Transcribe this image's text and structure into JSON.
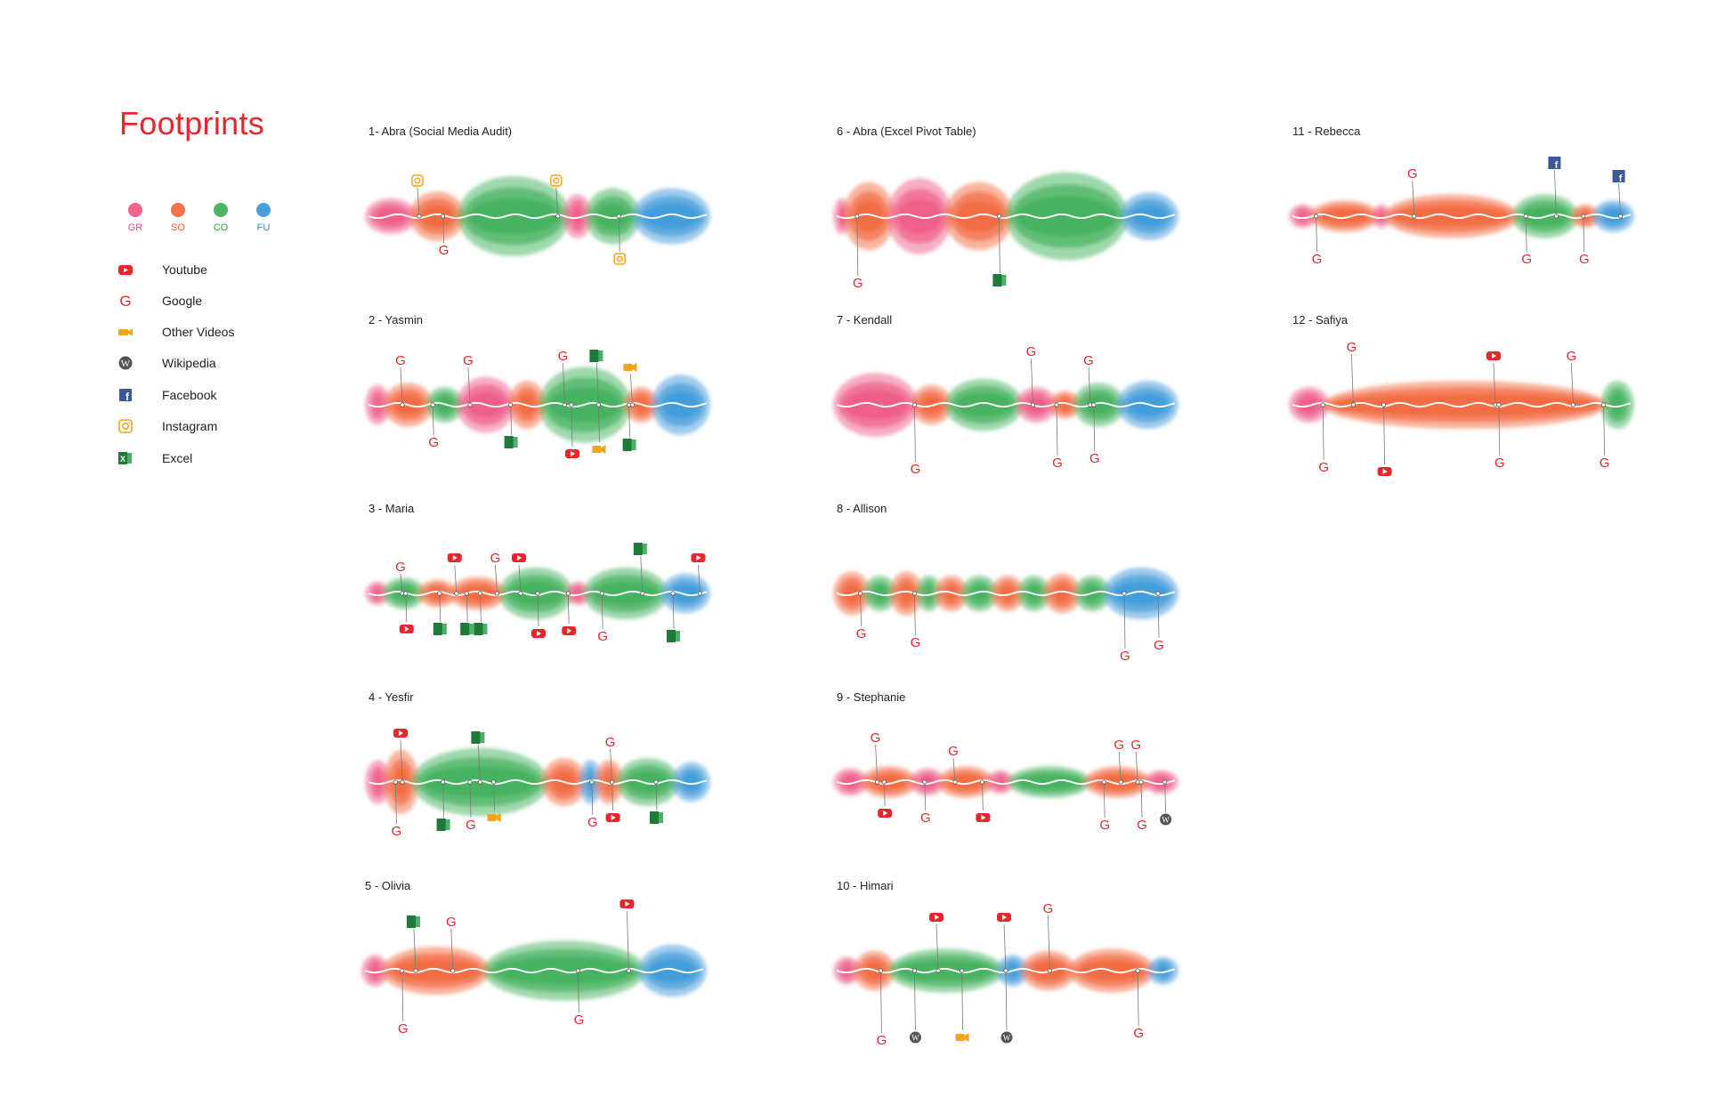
{
  "page": {
    "title": "Footprints"
  },
  "stages": [
    {
      "code": "GR",
      "color": "#ec4a7a"
    },
    {
      "code": "SO",
      "color": "#f15a2b"
    },
    {
      "code": "CO",
      "color": "#2ea84a"
    },
    {
      "code": "FU",
      "color": "#2c8fd6"
    }
  ],
  "legend": [
    {
      "label": "Youtube",
      "icon": "youtube-icon"
    },
    {
      "label": "Google",
      "icon": "google-icon"
    },
    {
      "label": "Other Videos",
      "icon": "video-camera-icon"
    },
    {
      "label": "Wikipedia",
      "icon": "wikipedia-icon"
    },
    {
      "label": "Facebook",
      "icon": "facebook-icon"
    },
    {
      "label": "Instagram",
      "icon": "instagram-icon"
    },
    {
      "label": "Excel",
      "icon": "excel-icon"
    }
  ],
  "colors": {
    "GR": "#ec4a7a",
    "SO": "#f15a2b",
    "CO": "#2ea84a",
    "FU": "#2c8fd6",
    "accent": "#e8262b",
    "youtube": "#e8262b",
    "google": "#e8262b",
    "video": "#f5a31a",
    "facebook": "#3b5998",
    "instagram": "#f5a31a",
    "excel": "#1f7a3a",
    "wikipedia": "#555555"
  },
  "chart_data": [
    {
      "title": "1- Abra (Social Media Audit)",
      "blobs": [
        {
          "s": "GR",
          "w": 0.14,
          "h": 0.45
        },
        {
          "s": "SO",
          "w": 0.15,
          "h": 0.62
        },
        {
          "s": "CO",
          "w": 0.33,
          "h": 1.0
        },
        {
          "s": "GR",
          "w": 0.07,
          "h": 0.55
        },
        {
          "s": "CO",
          "w": 0.15,
          "h": 0.7
        },
        {
          "s": "FU",
          "w": 0.22,
          "h": 0.7
        }
      ],
      "annotations": [
        {
          "icon": "instagram-icon",
          "pos": 0.15,
          "side": "up",
          "len": 40
        },
        {
          "icon": "google-icon",
          "pos": 0.22,
          "side": "down",
          "len": 38
        },
        {
          "icon": "instagram-icon",
          "pos": 0.56,
          "side": "up",
          "len": 40
        },
        {
          "icon": "instagram-icon",
          "pos": 0.74,
          "side": "down",
          "len": 48
        }
      ]
    },
    {
      "title": "2 - Yasmin",
      "blobs": [
        {
          "s": "GR",
          "w": 0.06,
          "h": 0.5
        },
        {
          "s": "SO",
          "w": 0.14,
          "h": 0.55
        },
        {
          "s": "CO",
          "w": 0.1,
          "h": 0.45
        },
        {
          "s": "GR",
          "w": 0.17,
          "h": 0.7
        },
        {
          "s": "SO",
          "w": 0.1,
          "h": 0.6
        },
        {
          "s": "CO",
          "w": 0.28,
          "h": 0.95
        },
        {
          "s": "SO",
          "w": 0.09,
          "h": 0.45
        },
        {
          "s": "FU",
          "w": 0.17,
          "h": 0.75
        }
      ],
      "annotations": [
        {
          "icon": "google-icon",
          "pos": 0.1,
          "side": "up",
          "len": 50
        },
        {
          "icon": "google-icon",
          "pos": 0.19,
          "side": "down",
          "len": 42
        },
        {
          "icon": "google-icon",
          "pos": 0.3,
          "side": "up",
          "len": 50
        },
        {
          "icon": "excel-icon",
          "pos": 0.42,
          "side": "down",
          "len": 42
        },
        {
          "icon": "google-icon",
          "pos": 0.58,
          "side": "up",
          "len": 55
        },
        {
          "icon": "excel-icon",
          "pos": 0.68,
          "side": "up",
          "len": 55
        },
        {
          "icon": "video-camera-icon",
          "pos": 0.78,
          "side": "up",
          "len": 42
        },
        {
          "icon": "youtube-icon",
          "pos": 0.6,
          "side": "down",
          "len": 55
        },
        {
          "icon": "video-camera-icon",
          "pos": 0.68,
          "side": "down",
          "len": 50
        },
        {
          "icon": "excel-icon",
          "pos": 0.77,
          "side": "down",
          "len": 45
        }
      ]
    },
    {
      "title": "3 - Maria",
      "blobs": [
        {
          "s": "GR",
          "w": 0.05,
          "h": 0.3
        },
        {
          "s": "CO",
          "w": 0.1,
          "h": 0.4
        },
        {
          "s": "SO",
          "w": 0.09,
          "h": 0.35
        },
        {
          "s": "SO",
          "w": 0.14,
          "h": 0.42
        },
        {
          "s": "CO",
          "w": 0.19,
          "h": 0.65
        },
        {
          "s": "GR",
          "w": 0.05,
          "h": 0.3
        },
        {
          "s": "CO",
          "w": 0.22,
          "h": 0.65
        },
        {
          "s": "FU",
          "w": 0.12,
          "h": 0.5
        }
      ],
      "annotations": [
        {
          "icon": "google-icon",
          "pos": 0.1,
          "side": "up",
          "len": 30
        },
        {
          "icon": "youtube-icon",
          "pos": 0.26,
          "side": "up",
          "len": 40
        },
        {
          "icon": "google-icon",
          "pos": 0.38,
          "side": "up",
          "len": 40
        },
        {
          "icon": "youtube-icon",
          "pos": 0.45,
          "side": "up",
          "len": 40
        },
        {
          "icon": "excel-icon",
          "pos": 0.81,
          "side": "up",
          "len": 50
        },
        {
          "icon": "youtube-icon",
          "pos": 0.98,
          "side": "up",
          "len": 40
        },
        {
          "icon": "youtube-icon",
          "pos": 0.11,
          "side": "down",
          "len": 40
        },
        {
          "icon": "excel-icon",
          "pos": 0.21,
          "side": "down",
          "len": 40
        },
        {
          "icon": "excel-icon",
          "pos": 0.29,
          "side": "down",
          "len": 40
        },
        {
          "icon": "excel-icon",
          "pos": 0.33,
          "side": "down",
          "len": 40
        },
        {
          "icon": "youtube-icon",
          "pos": 0.5,
          "side": "down",
          "len": 45
        },
        {
          "icon": "youtube-icon",
          "pos": 0.59,
          "side": "down",
          "len": 42
        },
        {
          "icon": "google-icon",
          "pos": 0.69,
          "side": "down",
          "len": 48
        },
        {
          "icon": "excel-icon",
          "pos": 0.9,
          "side": "down",
          "len": 48
        }
      ]
    },
    {
      "title": "4 - Yesfir",
      "blobs": [
        {
          "s": "GR",
          "w": 0.06,
          "h": 0.55
        },
        {
          "s": "SO",
          "w": 0.09,
          "h": 0.8
        },
        {
          "s": "CO",
          "w": 0.42,
          "h": 0.85
        },
        {
          "s": "SO",
          "w": 0.12,
          "h": 0.6
        },
        {
          "s": "FU",
          "w": 0.05,
          "h": 0.55
        },
        {
          "s": "SO",
          "w": 0.07,
          "h": 0.55
        },
        {
          "s": "CO",
          "w": 0.18,
          "h": 0.6
        },
        {
          "s": "FU",
          "w": 0.1,
          "h": 0.5
        }
      ],
      "annotations": [
        {
          "icon": "youtube-icon",
          "pos": 0.1,
          "side": "up",
          "len": 55
        },
        {
          "icon": "excel-icon",
          "pos": 0.33,
          "side": "up",
          "len": 50
        },
        {
          "icon": "google-icon",
          "pos": 0.72,
          "side": "up",
          "len": 45
        },
        {
          "icon": "google-icon",
          "pos": 0.08,
          "side": "down",
          "len": 55
        },
        {
          "icon": "excel-icon",
          "pos": 0.22,
          "side": "down",
          "len": 48
        },
        {
          "icon": "google-icon",
          "pos": 0.3,
          "side": "down",
          "len": 48
        },
        {
          "icon": "video-camera-icon",
          "pos": 0.37,
          "side": "down",
          "len": 40
        },
        {
          "icon": "google-icon",
          "pos": 0.66,
          "side": "down",
          "len": 45
        },
        {
          "icon": "youtube-icon",
          "pos": 0.72,
          "side": "down",
          "len": 40
        },
        {
          "icon": "excel-icon",
          "pos": 0.85,
          "side": "down",
          "len": 40
        }
      ]
    },
    {
      "title": "5 - Olivia",
      "blobs": [
        {
          "s": "GR",
          "w": 0.06,
          "h": 0.4
        },
        {
          "s": "SO",
          "w": 0.3,
          "h": 0.6
        },
        {
          "s": "CO",
          "w": 0.46,
          "h": 0.75
        },
        {
          "s": "FU",
          "w": 0.18,
          "h": 0.65
        }
      ],
      "annotations": [
        {
          "icon": "excel-icon",
          "pos": 0.15,
          "side": "up",
          "len": 55
        },
        {
          "icon": "google-icon",
          "pos": 0.26,
          "side": "up",
          "len": 55
        },
        {
          "icon": "youtube-icon",
          "pos": 0.78,
          "side": "up",
          "len": 75
        },
        {
          "icon": "google-icon",
          "pos": 0.11,
          "side": "down",
          "len": 65
        },
        {
          "icon": "google-icon",
          "pos": 0.63,
          "side": "down",
          "len": 55
        }
      ]
    },
    {
      "title": "6 - Abra (Excel Pivot Table)",
      "blobs": [
        {
          "s": "GR",
          "w": 0.03,
          "h": 0.45
        },
        {
          "s": "SO",
          "w": 0.13,
          "h": 0.85
        },
        {
          "s": "GR",
          "w": 0.17,
          "h": 0.95
        },
        {
          "s": "SO",
          "w": 0.18,
          "h": 0.85
        },
        {
          "s": "CO",
          "w": 0.34,
          "h": 1.1
        },
        {
          "s": "FU",
          "w": 0.15,
          "h": 0.6
        }
      ],
      "annotations": [
        {
          "icon": "google-icon",
          "pos": 0.06,
          "side": "down",
          "len": 75
        },
        {
          "icon": "excel-icon",
          "pos": 0.48,
          "side": "down",
          "len": 72
        }
      ]
    },
    {
      "title": "7 - Kendall",
      "blobs": [
        {
          "s": "GR",
          "w": 0.23,
          "h": 0.8
        },
        {
          "s": "SO",
          "w": 0.1,
          "h": 0.5
        },
        {
          "s": "CO",
          "w": 0.21,
          "h": 0.65
        },
        {
          "s": "GR",
          "w": 0.1,
          "h": 0.45
        },
        {
          "s": "SO",
          "w": 0.07,
          "h": 0.35
        },
        {
          "s": "CO",
          "w": 0.13,
          "h": 0.55
        },
        {
          "s": "FU",
          "w": 0.16,
          "h": 0.6
        }
      ],
      "annotations": [
        {
          "icon": "google-icon",
          "pos": 0.58,
          "side": "up",
          "len": 60
        },
        {
          "icon": "google-icon",
          "pos": 0.75,
          "side": "up",
          "len": 50
        },
        {
          "icon": "google-icon",
          "pos": 0.23,
          "side": "down",
          "len": 72
        },
        {
          "icon": "google-icon",
          "pos": 0.65,
          "side": "down",
          "len": 65
        },
        {
          "icon": "google-icon",
          "pos": 0.76,
          "side": "down",
          "len": 60
        }
      ]
    },
    {
      "title": "8 - Allison",
      "blobs": [
        {
          "s": "SO",
          "w": 0.08,
          "h": 0.55
        },
        {
          "s": "CO",
          "w": 0.07,
          "h": 0.45
        },
        {
          "s": "SO",
          "w": 0.07,
          "h": 0.55
        },
        {
          "s": "CO",
          "w": 0.05,
          "h": 0.45
        },
        {
          "s": "SO",
          "w": 0.07,
          "h": 0.45
        },
        {
          "s": "CO",
          "w": 0.08,
          "h": 0.45
        },
        {
          "s": "SO",
          "w": 0.07,
          "h": 0.45
        },
        {
          "s": "CO",
          "w": 0.07,
          "h": 0.45
        },
        {
          "s": "SO",
          "w": 0.08,
          "h": 0.5
        },
        {
          "s": "CO",
          "w": 0.08,
          "h": 0.45
        },
        {
          "s": "FU",
          "w": 0.18,
          "h": 0.65
        }
      ],
      "annotations": [
        {
          "icon": "google-icon",
          "pos": 0.07,
          "side": "down",
          "len": 45
        },
        {
          "icon": "google-icon",
          "pos": 0.23,
          "side": "down",
          "len": 55
        },
        {
          "icon": "google-icon",
          "pos": 0.85,
          "side": "down",
          "len": 70
        },
        {
          "icon": "google-icon",
          "pos": 0.95,
          "side": "down",
          "len": 58
        }
      ]
    },
    {
      "title": "9 - Stephanie",
      "blobs": [
        {
          "s": "GR",
          "w": 0.08,
          "h": 0.35
        },
        {
          "s": "SO",
          "w": 0.14,
          "h": 0.4
        },
        {
          "s": "GR",
          "w": 0.08,
          "h": 0.35
        },
        {
          "s": "SO",
          "w": 0.14,
          "h": 0.4
        },
        {
          "s": "GR",
          "w": 0.06,
          "h": 0.3
        },
        {
          "s": "CO",
          "w": 0.22,
          "h": 0.4
        },
        {
          "s": "SO",
          "w": 0.17,
          "h": 0.4
        },
        {
          "s": "GR",
          "w": 0.08,
          "h": 0.3
        }
      ],
      "annotations": [
        {
          "icon": "google-icon",
          "pos": 0.12,
          "side": "up",
          "len": 50
        },
        {
          "icon": "google-icon",
          "pos": 0.35,
          "side": "up",
          "len": 35
        },
        {
          "icon": "google-icon",
          "pos": 0.84,
          "side": "up",
          "len": 42
        },
        {
          "icon": "google-icon",
          "pos": 0.89,
          "side": "up",
          "len": 42
        },
        {
          "icon": "youtube-icon",
          "pos": 0.14,
          "side": "down",
          "len": 35
        },
        {
          "icon": "google-icon",
          "pos": 0.26,
          "side": "down",
          "len": 40
        },
        {
          "icon": "youtube-icon",
          "pos": 0.43,
          "side": "down",
          "len": 40
        },
        {
          "icon": "google-icon",
          "pos": 0.79,
          "side": "down",
          "len": 48
        },
        {
          "icon": "google-icon",
          "pos": 0.9,
          "side": "down",
          "len": 48
        },
        {
          "icon": "wikipedia-icon",
          "pos": 0.97,
          "side": "down",
          "len": 42
        }
      ]
    },
    {
      "title": "10 - Himari",
      "blobs": [
        {
          "s": "GR",
          "w": 0.06,
          "h": 0.35
        },
        {
          "s": "SO",
          "w": 0.1,
          "h": 0.5
        },
        {
          "s": "CO",
          "w": 0.32,
          "h": 0.55
        },
        {
          "s": "FU",
          "w": 0.07,
          "h": 0.4
        },
        {
          "s": "SO",
          "w": 0.14,
          "h": 0.5
        },
        {
          "s": "SO",
          "w": 0.23,
          "h": 0.55
        },
        {
          "s": "FU",
          "w": 0.07,
          "h": 0.35
        }
      ],
      "annotations": [
        {
          "icon": "youtube-icon",
          "pos": 0.3,
          "side": "up",
          "len": 60
        },
        {
          "icon": "youtube-icon",
          "pos": 0.5,
          "side": "up",
          "len": 60
        },
        {
          "icon": "google-icon",
          "pos": 0.63,
          "side": "up",
          "len": 70
        },
        {
          "icon": "google-icon",
          "pos": 0.13,
          "side": "down",
          "len": 78
        },
        {
          "icon": "wikipedia-icon",
          "pos": 0.23,
          "side": "down",
          "len": 75
        },
        {
          "icon": "video-camera-icon",
          "pos": 0.37,
          "side": "down",
          "len": 75
        },
        {
          "icon": "wikipedia-icon",
          "pos": 0.5,
          "side": "down",
          "len": 75
        },
        {
          "icon": "google-icon",
          "pos": 0.89,
          "side": "down",
          "len": 70
        }
      ]
    },
    {
      "title": "11 - Rebecca",
      "blobs": [
        {
          "s": "GR",
          "w": 0.06,
          "h": 0.3
        },
        {
          "s": "SO",
          "w": 0.18,
          "h": 0.4
        },
        {
          "s": "GR",
          "w": 0.03,
          "h": 0.3
        },
        {
          "s": "SO",
          "w": 0.37,
          "h": 0.55
        },
        {
          "s": "CO",
          "w": 0.17,
          "h": 0.55
        },
        {
          "s": "SO",
          "w": 0.06,
          "h": 0.3
        },
        {
          "s": "FU",
          "w": 0.1,
          "h": 0.4
        }
      ],
      "annotations": [
        {
          "icon": "google-icon",
          "pos": 0.36,
          "side": "up",
          "len": 48
        },
        {
          "icon": "facebook-icon",
          "pos": 0.78,
          "side": "up",
          "len": 60
        },
        {
          "icon": "facebook-icon",
          "pos": 0.97,
          "side": "up",
          "len": 45
        },
        {
          "icon": "google-icon",
          "pos": 0.07,
          "side": "down",
          "len": 48
        },
        {
          "icon": "google-icon",
          "pos": 0.69,
          "side": "down",
          "len": 48
        },
        {
          "icon": "google-icon",
          "pos": 0.86,
          "side": "down",
          "len": 48
        }
      ]
    },
    {
      "title": "12 - Safiya",
      "blobs": [
        {
          "s": "GR",
          "w": 0.1,
          "h": 0.45
        },
        {
          "s": "SO",
          "w": 0.84,
          "h": 0.6
        },
        {
          "s": "CO",
          "w": 0.08,
          "h": 0.6
        }
      ],
      "annotations": [
        {
          "icon": "google-icon",
          "pos": 0.18,
          "side": "up",
          "len": 65
        },
        {
          "icon": "youtube-icon",
          "pos": 0.6,
          "side": "up",
          "len": 55
        },
        {
          "icon": "google-icon",
          "pos": 0.83,
          "side": "up",
          "len": 55
        },
        {
          "icon": "google-icon",
          "pos": 0.09,
          "side": "down",
          "len": 70
        },
        {
          "icon": "youtube-icon",
          "pos": 0.27,
          "side": "down",
          "len": 75
        },
        {
          "icon": "google-icon",
          "pos": 0.61,
          "side": "down",
          "len": 65
        },
        {
          "icon": "google-icon",
          "pos": 0.92,
          "side": "down",
          "len": 65
        }
      ]
    }
  ]
}
